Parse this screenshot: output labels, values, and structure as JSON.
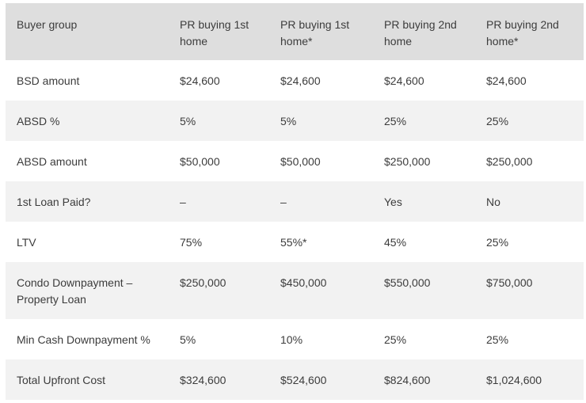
{
  "table": {
    "headers": [
      "Buyer group",
      "PR buying 1st home",
      "PR buying 1st home*",
      "PR buying 2nd home",
      "PR buying 2nd home*"
    ],
    "rows": [
      {
        "label": "BSD amount",
        "values": [
          "$24,600",
          "$24,600",
          "$24,600",
          "$24,600"
        ]
      },
      {
        "label": "ABSD %",
        "values": [
          "5%",
          "5%",
          "25%",
          "25%"
        ]
      },
      {
        "label": "ABSD amount",
        "values": [
          "$50,000",
          "$50,000",
          "$250,000",
          "$250,000"
        ]
      },
      {
        "label": "1st Loan Paid?",
        "values": [
          "–",
          "–",
          "Yes",
          "No"
        ]
      },
      {
        "label": "LTV",
        "values": [
          "75%",
          "55%*",
          "45%",
          "25%"
        ]
      },
      {
        "label": "Condo Downpayment – Property Loan",
        "values": [
          "$250,000",
          "$450,000",
          "$550,000",
          "$750,000"
        ]
      },
      {
        "label": "Min Cash Downpayment %",
        "values": [
          "5%",
          "10%",
          "25%",
          "25%"
        ]
      },
      {
        "label": "Total Upfront Cost",
        "values": [
          "$324,600",
          "$524,600",
          "$824,600",
          "$1,024,600"
        ]
      }
    ]
  }
}
